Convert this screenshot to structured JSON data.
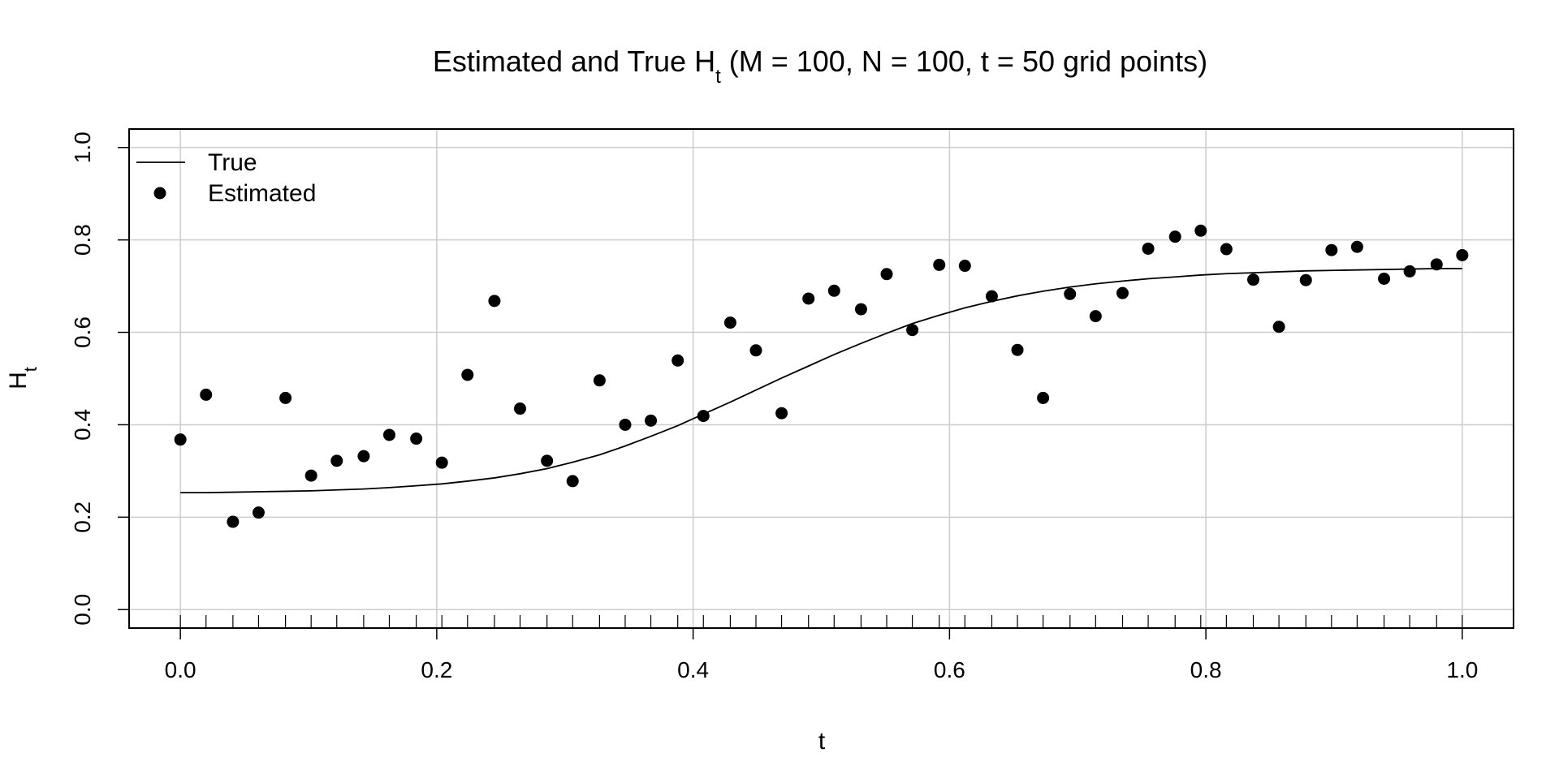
{
  "chart_data": {
    "type": "scatter",
    "title": {
      "main": "Estimated and True H",
      "sub": "t",
      "rest": " (M = 100, N = 100, t = 50 grid points)"
    },
    "xlabel": "t",
    "ylabel": {
      "main": "H",
      "sub": "t"
    },
    "xlim": [
      -0.04,
      1.04
    ],
    "ylim": [
      -0.04,
      1.04
    ],
    "xticks": [
      "0.0",
      "0.2",
      "0.4",
      "0.6",
      "0.8",
      "1.0"
    ],
    "yticks": [
      "0.0",
      "0.2",
      "0.4",
      "0.6",
      "0.8",
      "1.0"
    ],
    "grid": true,
    "rug": true,
    "legend": {
      "position": "top-left",
      "entries": [
        {
          "label": "True",
          "kind": "line"
        },
        {
          "label": "Estimated",
          "kind": "point"
        }
      ]
    },
    "series": [
      {
        "name": "True",
        "kind": "line",
        "color": "#000000",
        "x": [
          0,
          0.02,
          0.041,
          0.061,
          0.082,
          0.102,
          0.122,
          0.143,
          0.163,
          0.184,
          0.204,
          0.224,
          0.245,
          0.265,
          0.286,
          0.306,
          0.327,
          0.347,
          0.367,
          0.388,
          0.408,
          0.429,
          0.449,
          0.469,
          0.49,
          0.51,
          0.531,
          0.551,
          0.571,
          0.592,
          0.612,
          0.633,
          0.653,
          0.673,
          0.694,
          0.714,
          0.735,
          0.755,
          0.776,
          0.796,
          0.816,
          0.837,
          0.857,
          0.878,
          0.898,
          0.918,
          0.939,
          0.959,
          0.98,
          1.0
        ],
        "y": [
          0.253,
          0.253,
          0.254,
          0.255,
          0.256,
          0.257,
          0.259,
          0.261,
          0.264,
          0.268,
          0.272,
          0.278,
          0.285,
          0.294,
          0.305,
          0.319,
          0.335,
          0.354,
          0.375,
          0.398,
          0.423,
          0.449,
          0.475,
          0.501,
          0.527,
          0.552,
          0.576,
          0.598,
          0.619,
          0.637,
          0.653,
          0.667,
          0.679,
          0.689,
          0.698,
          0.705,
          0.711,
          0.716,
          0.72,
          0.724,
          0.727,
          0.729,
          0.731,
          0.733,
          0.734,
          0.735,
          0.736,
          0.737,
          0.738,
          0.738
        ]
      },
      {
        "name": "Estimated",
        "kind": "point",
        "color": "#000000",
        "x": [
          0,
          0.02,
          0.041,
          0.061,
          0.082,
          0.102,
          0.122,
          0.143,
          0.163,
          0.184,
          0.204,
          0.224,
          0.245,
          0.265,
          0.286,
          0.306,
          0.327,
          0.347,
          0.367,
          0.388,
          0.408,
          0.429,
          0.449,
          0.469,
          0.49,
          0.51,
          0.531,
          0.551,
          0.571,
          0.592,
          0.612,
          0.633,
          0.653,
          0.673,
          0.694,
          0.714,
          0.735,
          0.755,
          0.776,
          0.796,
          0.816,
          0.837,
          0.857,
          0.878,
          0.898,
          0.918,
          0.939,
          0.959,
          0.98,
          1.0
        ],
        "y": [
          0.368,
          0.465,
          0.19,
          0.21,
          0.458,
          0.29,
          0.322,
          0.332,
          0.378,
          0.37,
          0.318,
          0.508,
          0.668,
          0.435,
          0.322,
          0.278,
          0.496,
          0.4,
          0.409,
          0.539,
          0.419,
          0.621,
          0.561,
          0.425,
          0.673,
          0.69,
          0.65,
          0.726,
          0.605,
          0.746,
          0.744,
          0.678,
          0.562,
          0.458,
          0.683,
          0.635,
          0.685,
          0.781,
          0.807,
          0.82,
          0.78,
          0.714,
          0.612,
          0.713,
          0.778,
          0.785,
          0.716,
          0.732,
          0.747,
          0.767
        ]
      }
    ]
  }
}
